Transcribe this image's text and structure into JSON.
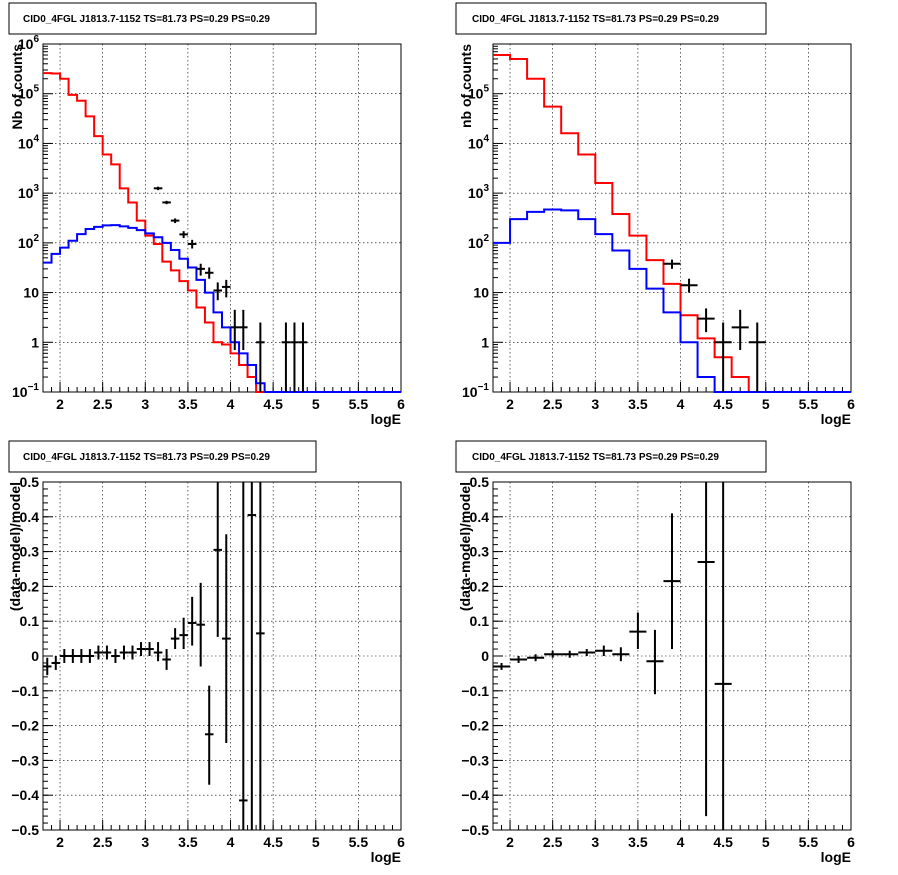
{
  "chart_data": [
    {
      "type": "line",
      "title": "CID0_4FGL J1813.7-1152 TS=81.73 PS=0.29 PS=0.29",
      "xlabel": "logE",
      "ylabel": "Nb of counts",
      "xlim": [
        1.8,
        6.0
      ],
      "ylim": [
        0.1,
        1000000
      ],
      "yscale": "log",
      "grid": true,
      "x_ticks": [
        "2",
        "2.5",
        "3",
        "3.5",
        "4",
        "4.5",
        "5",
        "5.5",
        "6"
      ],
      "y_ticks": [
        {
          "v": 0.1,
          "base": "10",
          "exp": "−1"
        },
        {
          "v": 1,
          "base": "1",
          "exp": ""
        },
        {
          "v": 10,
          "base": "10",
          "exp": ""
        },
        {
          "v": 100,
          "base": "10",
          "exp": "2"
        },
        {
          "v": 1000,
          "base": "10",
          "exp": "3"
        },
        {
          "v": 10000,
          "base": "10",
          "exp": "4"
        },
        {
          "v": 100000,
          "base": "10",
          "exp": "5"
        },
        {
          "v": 1000000,
          "base": "10",
          "exp": "6"
        }
      ],
      "bin_edges_start": 1.8,
      "bin_width": 0.1,
      "series": [
        {
          "style": "hist",
          "color": "#ff0000",
          "values": [
            260000,
            255000,
            200000,
            95000,
            72000,
            35000,
            14000,
            6000,
            3800,
            1250,
            650,
            280,
            140,
            95,
            42,
            28,
            17,
            11,
            5,
            2.5,
            1.0,
            0.9,
            0.6,
            0.35,
            0.2,
            0.1,
            0.1,
            0.1,
            0.1,
            0.1,
            0.1,
            0.1,
            0.1,
            0.1,
            0.1,
            0.1,
            0.1,
            0.1,
            0.1,
            0.1,
            0.1,
            0.1
          ]
        },
        {
          "style": "hist",
          "color": "#0000ff",
          "values": [
            40,
            60,
            80,
            110,
            150,
            190,
            210,
            225,
            228,
            215,
            200,
            180,
            155,
            130,
            100,
            72,
            48,
            32,
            18,
            10,
            4,
            2,
            1.0,
            0.6,
            0.35,
            0.15,
            0.1,
            0.1,
            0.1,
            0.1,
            0.1,
            0.1,
            0.1,
            0.1,
            0.1,
            0.1,
            0.1,
            0.1,
            0.1,
            0.1,
            0.1,
            0.1
          ]
        },
        {
          "style": "errorbar",
          "color": "#000000",
          "points": [
            {
              "x": 3.15,
              "y": 1250,
              "xerr": 0.05,
              "ylo": 1150,
              "yhi": 1350
            },
            {
              "x": 3.25,
              "y": 650,
              "xerr": 0.05,
              "ylo": 600,
              "yhi": 700
            },
            {
              "x": 3.35,
              "y": 280,
              "xerr": 0.05,
              "ylo": 250,
              "yhi": 310
            },
            {
              "x": 3.45,
              "y": 148,
              "xerr": 0.05,
              "ylo": 125,
              "yhi": 172
            },
            {
              "x": 3.55,
              "y": 95,
              "xerr": 0.05,
              "ylo": 77,
              "yhi": 115
            },
            {
              "x": 3.65,
              "y": 30,
              "xerr": 0.05,
              "ylo": 22,
              "yhi": 38
            },
            {
              "x": 3.75,
              "y": 25,
              "xerr": 0.05,
              "ylo": 19,
              "yhi": 32
            },
            {
              "x": 3.85,
              "y": 11,
              "xerr": 0.05,
              "ylo": 7,
              "yhi": 16
            },
            {
              "x": 3.95,
              "y": 13,
              "xerr": 0.05,
              "ylo": 8,
              "yhi": 18
            },
            {
              "x": 4.05,
              "y": 2.0,
              "xerr": 0.05,
              "ylo": 0.7,
              "yhi": 4.5
            },
            {
              "x": 4.15,
              "y": 2.0,
              "xerr": 0.05,
              "ylo": 0.7,
              "yhi": 4.5
            },
            {
              "x": 4.35,
              "y": 1.0,
              "xerr": 0.05,
              "ylo": 0.1,
              "yhi": 2.5
            },
            {
              "x": 4.65,
              "y": 1.0,
              "xerr": 0.05,
              "ylo": 0.1,
              "yhi": 2.5
            },
            {
              "x": 4.75,
              "y": 1.0,
              "xerr": 0.05,
              "ylo": 0.1,
              "yhi": 2.5
            },
            {
              "x": 4.85,
              "y": 1.0,
              "xerr": 0.05,
              "ylo": 0.1,
              "yhi": 2.5
            }
          ]
        }
      ]
    },
    {
      "type": "line",
      "title": "CID0_4FGL J1813.7-1152 TS=81.73 PS=0.29 PS=0.29",
      "xlabel": "logE",
      "ylabel": "nb of counts",
      "xlim": [
        1.8,
        6.0
      ],
      "ylim": [
        0.1,
        1000000
      ],
      "yscale": "log",
      "grid": true,
      "x_ticks": [
        "2",
        "2.5",
        "3",
        "3.5",
        "4",
        "4.5",
        "5",
        "5.5",
        "6"
      ],
      "y_ticks": [
        {
          "v": 0.1,
          "base": "10",
          "exp": "−1"
        },
        {
          "v": 1,
          "base": "1",
          "exp": ""
        },
        {
          "v": 10,
          "base": "10",
          "exp": ""
        },
        {
          "v": 100,
          "base": "10",
          "exp": "2"
        },
        {
          "v": 1000,
          "base": "10",
          "exp": "3"
        },
        {
          "v": 10000,
          "base": "10",
          "exp": "4"
        },
        {
          "v": 100000,
          "base": "10",
          "exp": "5"
        }
      ],
      "bin_edges_start": 1.8,
      "bin_width": 0.2,
      "series": [
        {
          "style": "hist",
          "color": "#ff0000",
          "values": [
            600000,
            500000,
            200000,
            55000,
            16000,
            6000,
            1600,
            380,
            140,
            45,
            15,
            3.5,
            1.2,
            0.5,
            0.2,
            0.1,
            0.1,
            0.1,
            0.1,
            0.1,
            0.1
          ]
        },
        {
          "style": "hist",
          "color": "#0000ff",
          "values": [
            100,
            300,
            420,
            470,
            450,
            300,
            150,
            70,
            30,
            12,
            4,
            1.0,
            0.2,
            0.1,
            0.1,
            0.1,
            0.1,
            0.1,
            0.1,
            0.1,
            0.1
          ]
        },
        {
          "style": "errorbar",
          "color": "#000000",
          "points": [
            {
              "x": 3.9,
              "y": 38,
              "xerr": 0.1,
              "ylo": 30,
              "yhi": 46
            },
            {
              "x": 4.1,
              "y": 14,
              "xerr": 0.1,
              "ylo": 10,
              "yhi": 19
            },
            {
              "x": 4.3,
              "y": 3,
              "xerr": 0.1,
              "ylo": 1.6,
              "yhi": 4.8
            },
            {
              "x": 4.5,
              "y": 1.0,
              "xerr": 0.1,
              "ylo": 0.1,
              "yhi": 2.5
            },
            {
              "x": 4.7,
              "y": 2.0,
              "xerr": 0.1,
              "ylo": 0.7,
              "yhi": 4.5
            },
            {
              "x": 4.9,
              "y": 1.0,
              "xerr": 0.1,
              "ylo": 0.1,
              "yhi": 2.5
            }
          ]
        }
      ]
    },
    {
      "type": "scatter",
      "title": "CID0_4FGL J1813.7-1152 TS=81.73 PS=0.29 PS=0.29",
      "xlabel": "logE",
      "ylabel": "(data-model)/model",
      "xlim": [
        1.8,
        6.0
      ],
      "ylim": [
        -0.5,
        0.5
      ],
      "yscale": "linear",
      "grid": true,
      "x_ticks": [
        "2",
        "2.5",
        "3",
        "3.5",
        "4",
        "4.5",
        "5",
        "5.5",
        "6"
      ],
      "y_ticks": [
        "0.5",
        "0.4",
        "0.3",
        "0.2",
        "0.1",
        "0",
        "−0.1",
        "−0.2",
        "−0.3",
        "−0.4",
        "−0.5"
      ],
      "series": [
        {
          "style": "errorbar",
          "color": "#000000",
          "points": [
            {
              "x": 1.85,
              "y": -0.03,
              "xerr": 0.05,
              "ylo": -0.055,
              "yhi": -0.005
            },
            {
              "x": 1.95,
              "y": -0.02,
              "xerr": 0.05,
              "ylo": -0.04,
              "yhi": 0.0
            },
            {
              "x": 2.05,
              "y": 0.0,
              "xerr": 0.05,
              "ylo": -0.02,
              "yhi": 0.02
            },
            {
              "x": 2.15,
              "y": 0.0,
              "xerr": 0.05,
              "ylo": -0.02,
              "yhi": 0.02
            },
            {
              "x": 2.25,
              "y": 0.0,
              "xerr": 0.05,
              "ylo": -0.02,
              "yhi": 0.02
            },
            {
              "x": 2.35,
              "y": 0.0,
              "xerr": 0.05,
              "ylo": -0.02,
              "yhi": 0.02
            },
            {
              "x": 2.45,
              "y": 0.01,
              "xerr": 0.05,
              "ylo": -0.01,
              "yhi": 0.03
            },
            {
              "x": 2.55,
              "y": 0.01,
              "xerr": 0.05,
              "ylo": -0.01,
              "yhi": 0.03
            },
            {
              "x": 2.65,
              "y": 0.0,
              "xerr": 0.05,
              "ylo": -0.02,
              "yhi": 0.02
            },
            {
              "x": 2.75,
              "y": 0.01,
              "xerr": 0.05,
              "ylo": -0.01,
              "yhi": 0.03
            },
            {
              "x": 2.85,
              "y": 0.01,
              "xerr": 0.05,
              "ylo": -0.01,
              "yhi": 0.03
            },
            {
              "x": 2.95,
              "y": 0.02,
              "xerr": 0.05,
              "ylo": 0.0,
              "yhi": 0.04
            },
            {
              "x": 3.05,
              "y": 0.02,
              "xerr": 0.05,
              "ylo": 0.0,
              "yhi": 0.04
            },
            {
              "x": 3.15,
              "y": 0.01,
              "xerr": 0.05,
              "ylo": -0.015,
              "yhi": 0.04
            },
            {
              "x": 3.25,
              "y": -0.01,
              "xerr": 0.05,
              "ylo": -0.04,
              "yhi": 0.02
            },
            {
              "x": 3.35,
              "y": 0.05,
              "xerr": 0.05,
              "ylo": 0.02,
              "yhi": 0.08
            },
            {
              "x": 3.45,
              "y": 0.06,
              "xerr": 0.05,
              "ylo": 0.02,
              "yhi": 0.11
            },
            {
              "x": 3.55,
              "y": 0.095,
              "xerr": 0.05,
              "ylo": 0.03,
              "yhi": 0.17
            },
            {
              "x": 3.65,
              "y": 0.09,
              "xerr": 0.05,
              "ylo": -0.03,
              "yhi": 0.21
            },
            {
              "x": 3.75,
              "y": -0.225,
              "xerr": 0.05,
              "ylo": -0.37,
              "yhi": -0.085
            },
            {
              "x": 3.85,
              "y": 0.305,
              "xerr": 0.05,
              "ylo": 0.055,
              "yhi": 0.5
            },
            {
              "x": 3.95,
              "y": 0.05,
              "xerr": 0.05,
              "ylo": -0.25,
              "yhi": 0.35
            },
            {
              "x": 4.15,
              "y": -0.415,
              "xerr": 0.05,
              "ylo": -0.5,
              "yhi": 0.5
            },
            {
              "x": 4.25,
              "y": 0.405,
              "xerr": 0.05,
              "ylo": -0.5,
              "yhi": 0.5
            },
            {
              "x": 4.35,
              "y": 0.065,
              "xerr": 0.05,
              "ylo": -0.5,
              "yhi": 0.5
            }
          ]
        }
      ]
    },
    {
      "type": "scatter",
      "title": "CID0_4FGL J1813.7-1152 TS=81.73 PS=0.29 PS=0.29",
      "xlabel": "logE",
      "ylabel": "(data-model)/model",
      "xlim": [
        1.8,
        6.0
      ],
      "ylim": [
        -0.5,
        0.5
      ],
      "yscale": "linear",
      "grid": true,
      "x_ticks": [
        "2",
        "2.5",
        "3",
        "3.5",
        "4",
        "4.5",
        "5",
        "5.5",
        "6"
      ],
      "y_ticks": [
        "0.5",
        "0.4",
        "0.3",
        "0.2",
        "0.1",
        "0",
        "−0.1",
        "−0.2",
        "−0.3",
        "−0.4",
        "−0.5"
      ],
      "series": [
        {
          "style": "errorbar",
          "color": "#000000",
          "points": [
            {
              "x": 1.9,
              "y": -0.03,
              "xerr": 0.1,
              "ylo": -0.04,
              "yhi": -0.02
            },
            {
              "x": 2.1,
              "y": -0.01,
              "xerr": 0.1,
              "ylo": -0.02,
              "yhi": 0.0
            },
            {
              "x": 2.3,
              "y": -0.005,
              "xerr": 0.1,
              "ylo": -0.015,
              "yhi": 0.005
            },
            {
              "x": 2.5,
              "y": 0.005,
              "xerr": 0.1,
              "ylo": -0.005,
              "yhi": 0.015
            },
            {
              "x": 2.7,
              "y": 0.005,
              "xerr": 0.1,
              "ylo": -0.005,
              "yhi": 0.015
            },
            {
              "x": 2.9,
              "y": 0.01,
              "xerr": 0.1,
              "ylo": 0.0,
              "yhi": 0.02
            },
            {
              "x": 3.1,
              "y": 0.015,
              "xerr": 0.1,
              "ylo": 0.0,
              "yhi": 0.03
            },
            {
              "x": 3.3,
              "y": 0.005,
              "xerr": 0.1,
              "ylo": -0.015,
              "yhi": 0.025
            },
            {
              "x": 3.5,
              "y": 0.07,
              "xerr": 0.1,
              "ylo": 0.02,
              "yhi": 0.125
            },
            {
              "x": 3.7,
              "y": -0.015,
              "xerr": 0.1,
              "ylo": -0.11,
              "yhi": 0.075
            },
            {
              "x": 3.9,
              "y": 0.215,
              "xerr": 0.1,
              "ylo": 0.02,
              "yhi": 0.41
            },
            {
              "x": 4.3,
              "y": 0.27,
              "xerr": 0.1,
              "ylo": -0.46,
              "yhi": 0.5
            },
            {
              "x": 4.5,
              "y": -0.08,
              "xerr": 0.1,
              "ylo": -0.5,
              "yhi": 0.5
            }
          ]
        }
      ]
    }
  ]
}
